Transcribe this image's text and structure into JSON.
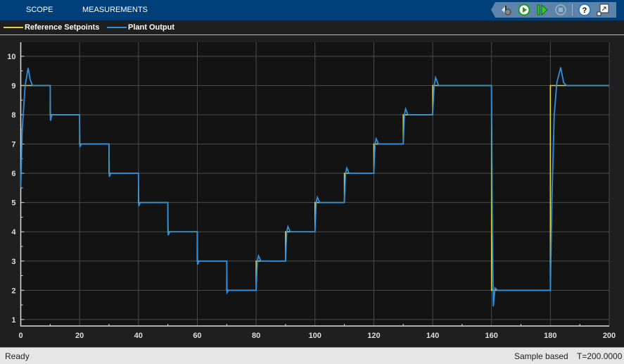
{
  "tabs": [
    {
      "label": "SCOPE"
    },
    {
      "label": "MEASUREMENTS"
    }
  ],
  "toolbar": [
    {
      "icon": "settings-gear-icon"
    },
    {
      "icon": "run-icon"
    },
    {
      "icon": "step-forward-icon"
    },
    {
      "icon": "stop-icon"
    },
    {
      "icon": "help-icon"
    },
    {
      "icon": "undock-icon"
    }
  ],
  "legend": [
    {
      "label": "Reference Setpoints",
      "color": "#e6d33a"
    },
    {
      "label": "Plant Output",
      "color": "#2f8fdc"
    }
  ],
  "status": {
    "left": "Ready",
    "mode": "Sample based",
    "time": "T=200.0000"
  },
  "chart_data": {
    "type": "line",
    "xlim": [
      0,
      200
    ],
    "ylim": [
      0.78,
      10.48
    ],
    "xticks": [
      0,
      20,
      40,
      60,
      80,
      100,
      120,
      140,
      160,
      180,
      200
    ],
    "yticks": [
      1,
      2,
      3,
      4,
      5,
      6,
      7,
      8,
      9,
      10
    ],
    "grid": true,
    "legend_position": "top",
    "series": [
      {
        "name": "Reference Setpoints",
        "color": "#e6d33a",
        "step": true,
        "x": [
          0,
          10,
          20,
          30,
          40,
          50,
          60,
          70,
          80,
          90,
          100,
          110,
          120,
          130,
          140,
          160,
          180,
          200
        ],
        "y": [
          9,
          8,
          7,
          6,
          5,
          4,
          3,
          2,
          3,
          4,
          5,
          6,
          7,
          8,
          9,
          2,
          9,
          9
        ]
      },
      {
        "name": "Plant Output",
        "color": "#2f8fdc",
        "points": [
          [
            0,
            5.5
          ],
          [
            0.5,
            7.5
          ],
          [
            1.5,
            9.0
          ],
          [
            2.5,
            9.6
          ],
          [
            3.2,
            9.2
          ],
          [
            4,
            9.0
          ],
          [
            10,
            9.0
          ],
          [
            10.1,
            7.8
          ],
          [
            10.6,
            8.0
          ],
          [
            20,
            8
          ],
          [
            20.1,
            6.9
          ],
          [
            20.6,
            7
          ],
          [
            30,
            7
          ],
          [
            30.1,
            5.88
          ],
          [
            30.6,
            6
          ],
          [
            40,
            6
          ],
          [
            40.1,
            4.88
          ],
          [
            40.6,
            5
          ],
          [
            50,
            5
          ],
          [
            50.1,
            3.88
          ],
          [
            50.6,
            4
          ],
          [
            60,
            4
          ],
          [
            60.1,
            2.88
          ],
          [
            60.6,
            3
          ],
          [
            70,
            3
          ],
          [
            70.1,
            1.92
          ],
          [
            70.6,
            2
          ],
          [
            80,
            2
          ],
          [
            80.4,
            3.0
          ],
          [
            80.8,
            3.18
          ],
          [
            81.6,
            3.0
          ],
          [
            90,
            3
          ],
          [
            90.4,
            4.0
          ],
          [
            90.8,
            4.18
          ],
          [
            91.6,
            4
          ],
          [
            100,
            4
          ],
          [
            100.4,
            5
          ],
          [
            100.8,
            5.18
          ],
          [
            101.6,
            5
          ],
          [
            110,
            5
          ],
          [
            110.4,
            6
          ],
          [
            110.8,
            6.18
          ],
          [
            111.6,
            6
          ],
          [
            120,
            6
          ],
          [
            120.4,
            7
          ],
          [
            120.8,
            7.18
          ],
          [
            121.6,
            7
          ],
          [
            130,
            7
          ],
          [
            130.4,
            8
          ],
          [
            130.8,
            8.2
          ],
          [
            131.6,
            8
          ],
          [
            140,
            8
          ],
          [
            140.5,
            9
          ],
          [
            141,
            9.27
          ],
          [
            142,
            9.0
          ],
          [
            160,
            9
          ],
          [
            160.3,
            4
          ],
          [
            160.6,
            1.45
          ],
          [
            161.2,
            2.08
          ],
          [
            162,
            2.0
          ],
          [
            180,
            2
          ],
          [
            180.5,
            5
          ],
          [
            181.3,
            8
          ],
          [
            182.2,
            9.1
          ],
          [
            183.5,
            9.62
          ],
          [
            184.5,
            9.1
          ],
          [
            185.5,
            9.0
          ],
          [
            200,
            9
          ]
        ]
      }
    ]
  }
}
